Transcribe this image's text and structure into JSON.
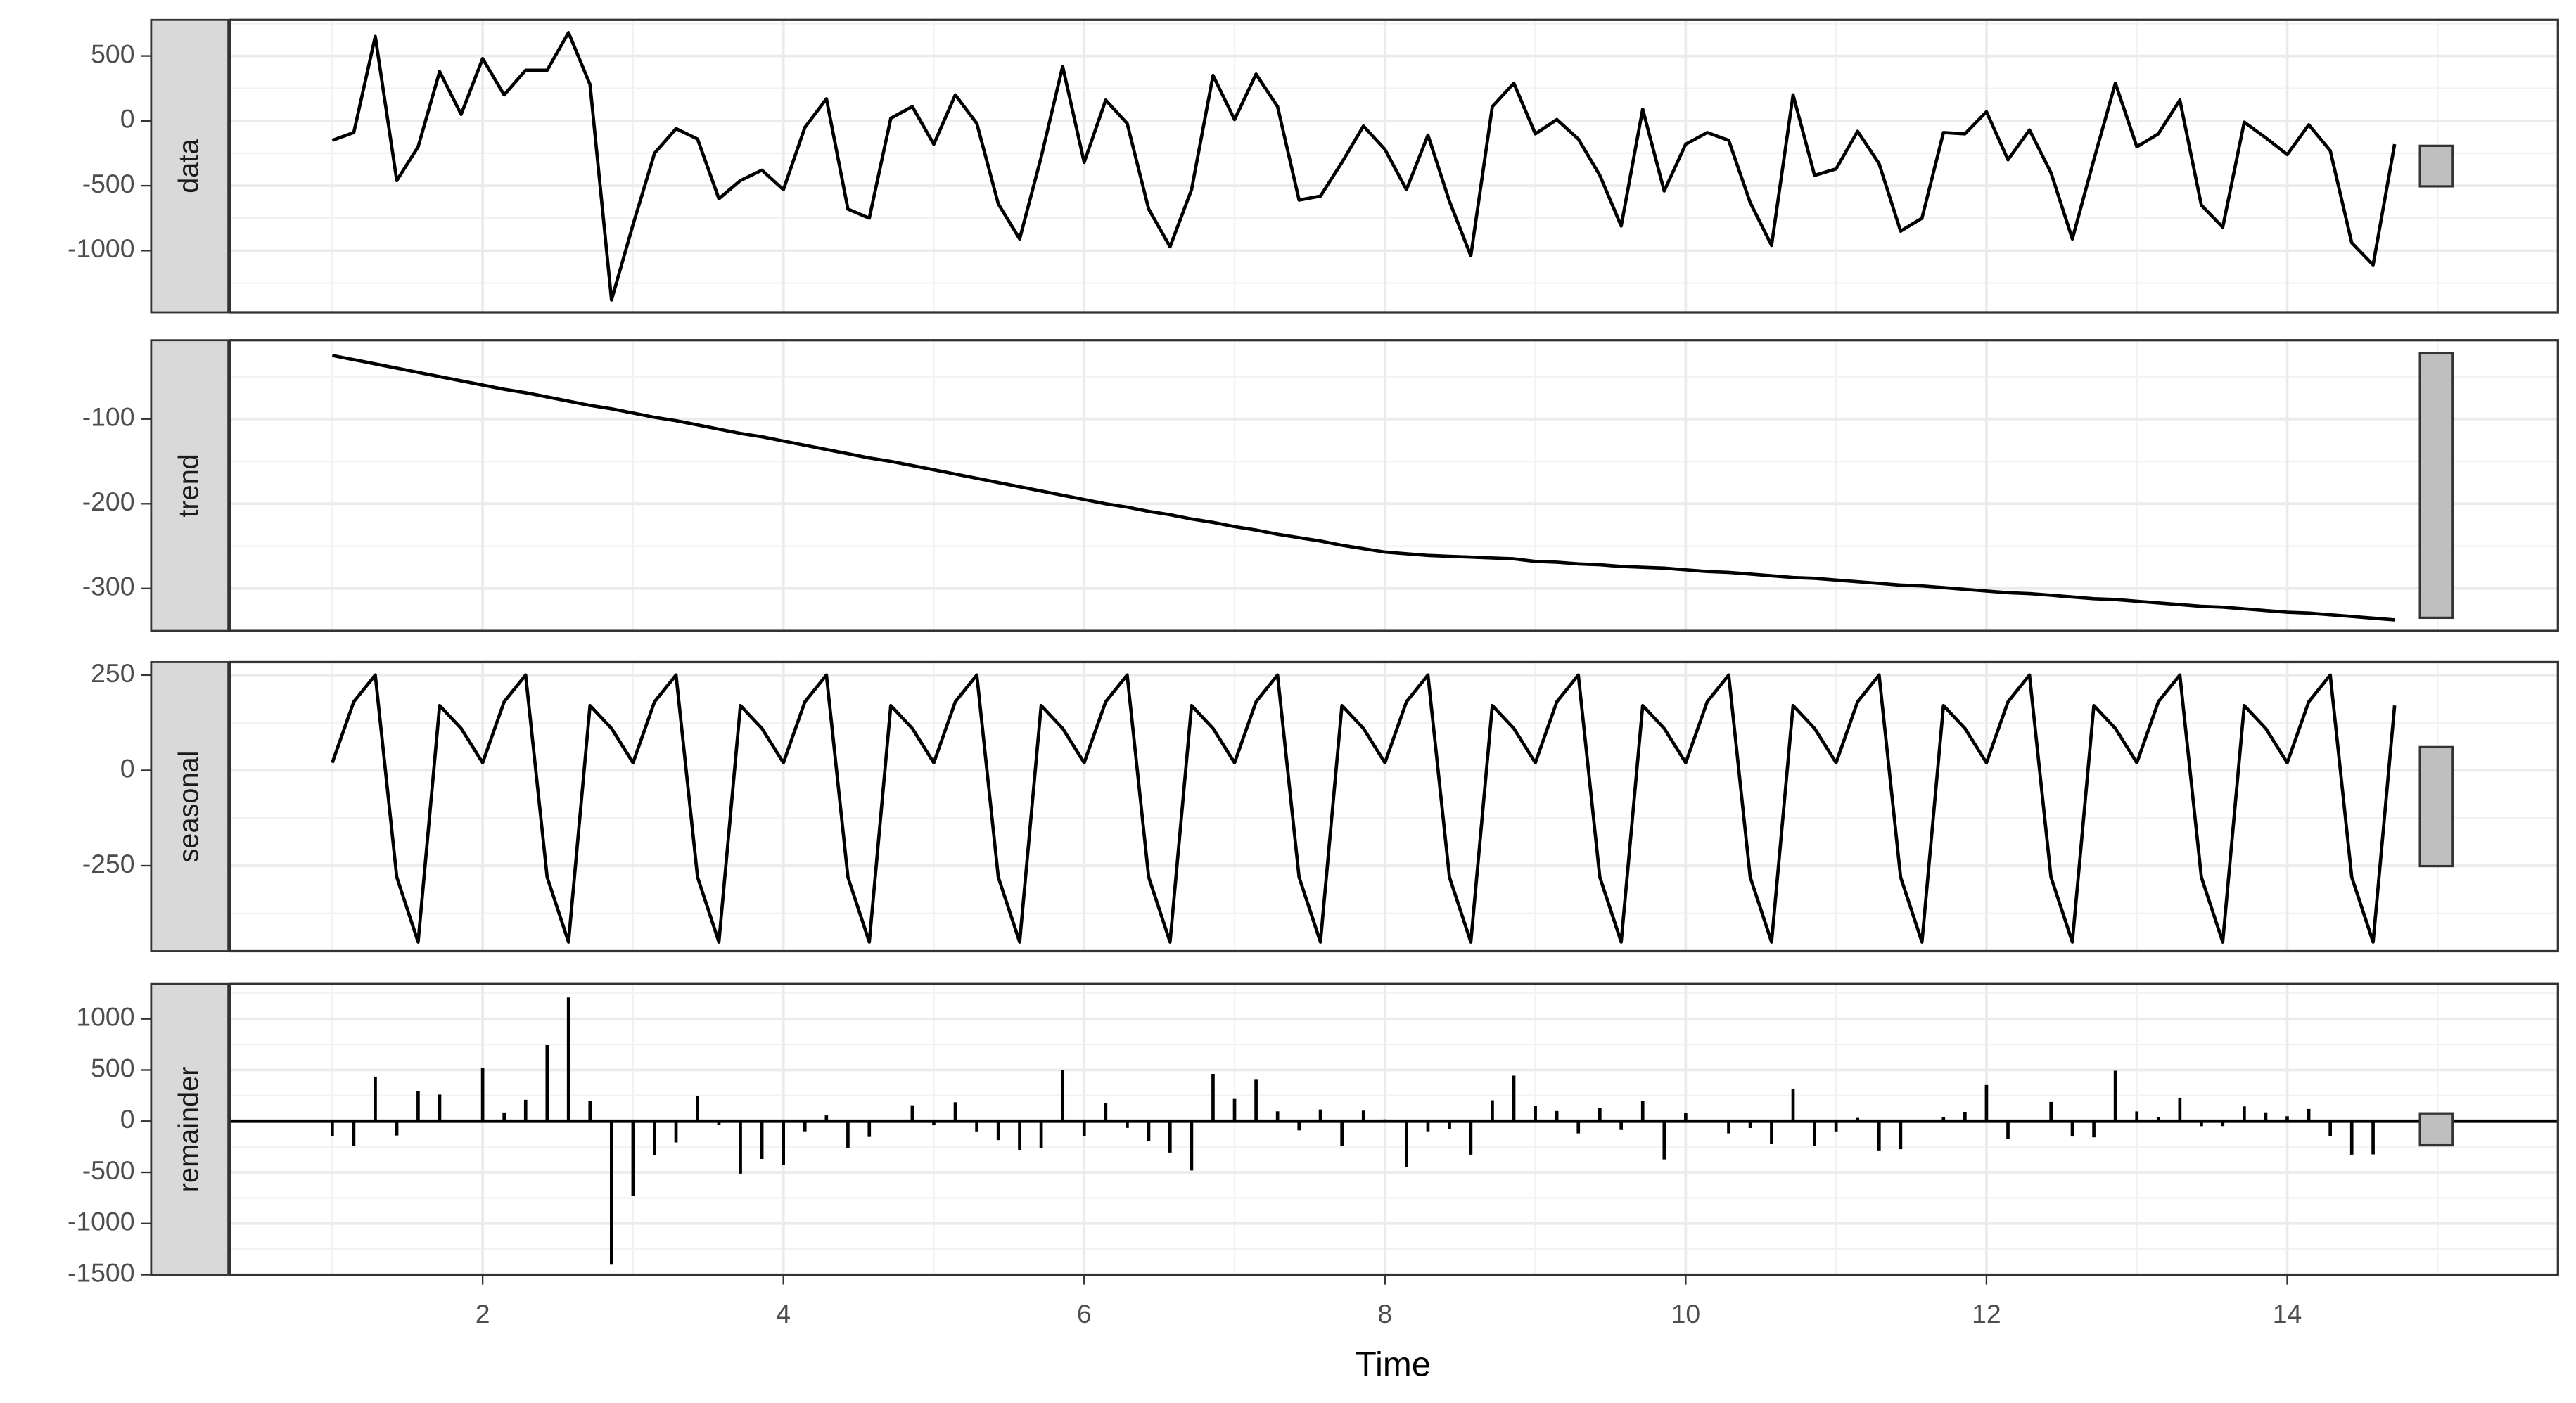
{
  "chart_data": {
    "type": "facet",
    "xlabel": "Time",
    "xlim": [
      0.32,
      15.8
    ],
    "xticks": [
      2,
      4,
      6,
      8,
      10,
      12,
      14
    ],
    "grid": true,
    "minor_grid": true,
    "color": "#000000",
    "range_bar": 312,
    "x": [
      1,
      1.143,
      1.286,
      1.429,
      1.571,
      1.714,
      1.857,
      2,
      2.143,
      2.286,
      2.429,
      2.571,
      2.714,
      2.857,
      3,
      3.143,
      3.286,
      3.429,
      3.571,
      3.714,
      3.857,
      4,
      4.143,
      4.286,
      4.429,
      4.571,
      4.714,
      4.857,
      5,
      5.143,
      5.286,
      5.429,
      5.571,
      5.714,
      5.857,
      6,
      6.143,
      6.286,
      6.429,
      6.571,
      6.714,
      6.857,
      7,
      7.143,
      7.286,
      7.429,
      7.571,
      7.714,
      7.857,
      8,
      8.143,
      8.286,
      8.429,
      8.571,
      8.714,
      8.857,
      9,
      9.143,
      9.286,
      9.429,
      9.571,
      9.714,
      9.857,
      10,
      10.143,
      10.286,
      10.429,
      10.571,
      10.714,
      10.857,
      11,
      11.143,
      11.286,
      11.429,
      11.571,
      11.714,
      11.857,
      12,
      12.143,
      12.286,
      12.429,
      12.571,
      12.714,
      12.857,
      13,
      13.143,
      13.286,
      13.429,
      13.571,
      13.714,
      13.857,
      14,
      14.143,
      14.286,
      14.429,
      14.571,
      14.714
    ],
    "panels": [
      {
        "name": "data",
        "type": "line",
        "ylim": [
          -1475,
          778
        ],
        "yticks": [
          -1000,
          -500,
          0,
          500
        ],
        "values": [
          -150,
          -90,
          650,
          -460,
          -200,
          380,
          50,
          480,
          200,
          390,
          390,
          680,
          280,
          -1380,
          -800,
          -250,
          -60,
          -140,
          -600,
          -460,
          -380,
          -530,
          -50,
          170,
          -680,
          -750,
          20,
          110,
          -180,
          200,
          -20,
          -640,
          -910,
          -280,
          420,
          -320,
          160,
          -20,
          -680,
          -970,
          -530,
          350,
          10,
          360,
          110,
          -610,
          -580,
          -320,
          -40,
          -220,
          -530,
          -110,
          -620,
          -1040,
          110,
          290,
          -100,
          10,
          -140,
          -420,
          -810,
          90,
          -540,
          -180,
          -90,
          -150,
          -630,
          -960,
          200,
          -420,
          -370,
          -80,
          -330,
          -850,
          -750,
          -90,
          -100,
          70,
          -300,
          -70,
          -400,
          -910,
          -300,
          290,
          -200,
          -100,
          160,
          -650,
          -820,
          -10,
          -130,
          -260,
          -30,
          -230,
          -940,
          -1110,
          -180
        ]
      },
      {
        "name": "trend",
        "type": "line",
        "ylim": [
          -350,
          -7
        ],
        "yticks": [
          -300,
          -200,
          -100
        ],
        "values": [
          -25,
          -30,
          -35,
          -40,
          -45,
          -50,
          -55,
          -60,
          -65,
          -69,
          -74,
          -79,
          -84,
          -88,
          -93,
          -98,
          -102,
          -107,
          -112,
          -117,
          -121,
          -126,
          -131,
          -136,
          -141,
          -146,
          -150,
          -155,
          -160,
          -165,
          -170,
          -175,
          -180,
          -185,
          -190,
          -195,
          -200,
          -204,
          -209,
          -213,
          -218,
          -222,
          -227,
          -231,
          -236,
          -240,
          -244,
          -249,
          -253,
          -257,
          -259,
          -261,
          -262,
          -263,
          -264,
          -265,
          -268,
          -269,
          -271,
          -272,
          -274,
          -275,
          -276,
          -278,
          -280,
          -281,
          -283,
          -285,
          -287,
          -288,
          -290,
          -292,
          -294,
          -296,
          -297,
          -299,
          -301,
          -303,
          -305,
          -306,
          -308,
          -310,
          -312,
          -313,
          -315,
          -317,
          -319,
          -321,
          -322,
          -324,
          -326,
          -328,
          -329,
          -331,
          -333,
          -335,
          -337
        ]
      },
      {
        "name": "seasonal",
        "type": "line",
        "ylim": [
          -474,
          284
        ],
        "yticks": [
          -250,
          0,
          250
        ],
        "values": [
          20,
          180,
          250,
          -280,
          -450,
          170,
          110,
          20,
          180,
          250,
          -280,
          -450,
          170,
          110,
          20,
          180,
          250,
          -280,
          -450,
          170,
          110,
          20,
          180,
          250,
          -280,
          -450,
          170,
          110,
          20,
          180,
          250,
          -280,
          -450,
          170,
          110,
          20,
          180,
          250,
          -280,
          -450,
          170,
          110,
          20,
          180,
          250,
          -280,
          -450,
          170,
          110,
          20,
          180,
          250,
          -280,
          -450,
          170,
          110,
          20,
          180,
          250,
          -280,
          -450,
          170,
          110,
          20,
          180,
          250,
          -280,
          -450,
          170,
          110,
          20,
          180,
          250,
          -280,
          -450,
          170,
          110,
          20,
          180,
          250,
          -280,
          -450,
          170,
          110,
          20,
          180,
          250,
          -280,
          -450,
          170,
          110,
          20,
          180,
          250,
          -280,
          -450,
          170
        ]
      },
      {
        "name": "remainder",
        "type": "bar",
        "ylim": [
          -1500,
          1340
        ],
        "yticks": [
          -1500,
          -1000,
          -500,
          0,
          500,
          1000
        ],
        "values": [
          -145,
          -240,
          435,
          -140,
          295,
          260,
          -5,
          520,
          85,
          209,
          744,
          1209,
          194,
          -1402,
          -727,
          -332,
          -208,
          247,
          -38,
          -513,
          -369,
          -424,
          -99,
          56,
          -259,
          -154,
          0,
          155,
          -40,
          185,
          -100,
          -185,
          -280,
          -265,
          500,
          -145,
          180,
          -66,
          -191,
          -307,
          -482,
          462,
          217,
          411,
          96,
          -90,
          114,
          -241,
          103,
          17,
          -451,
          -99,
          -78,
          -327,
          204,
          445,
          148,
          99,
          -119,
          132,
          -86,
          195,
          -374,
          78,
          10,
          -119,
          -67,
          -225,
          317,
          -242,
          -100,
          32,
          -286,
          -274,
          -3,
          39,
          91,
          353,
          -175,
          -14,
          188,
          -150,
          -158,
          493,
          95,
          37,
          229,
          -49,
          -48,
          144,
          86,
          48,
          119,
          -149,
          -327,
          -325,
          -13
        ]
      }
    ]
  }
}
